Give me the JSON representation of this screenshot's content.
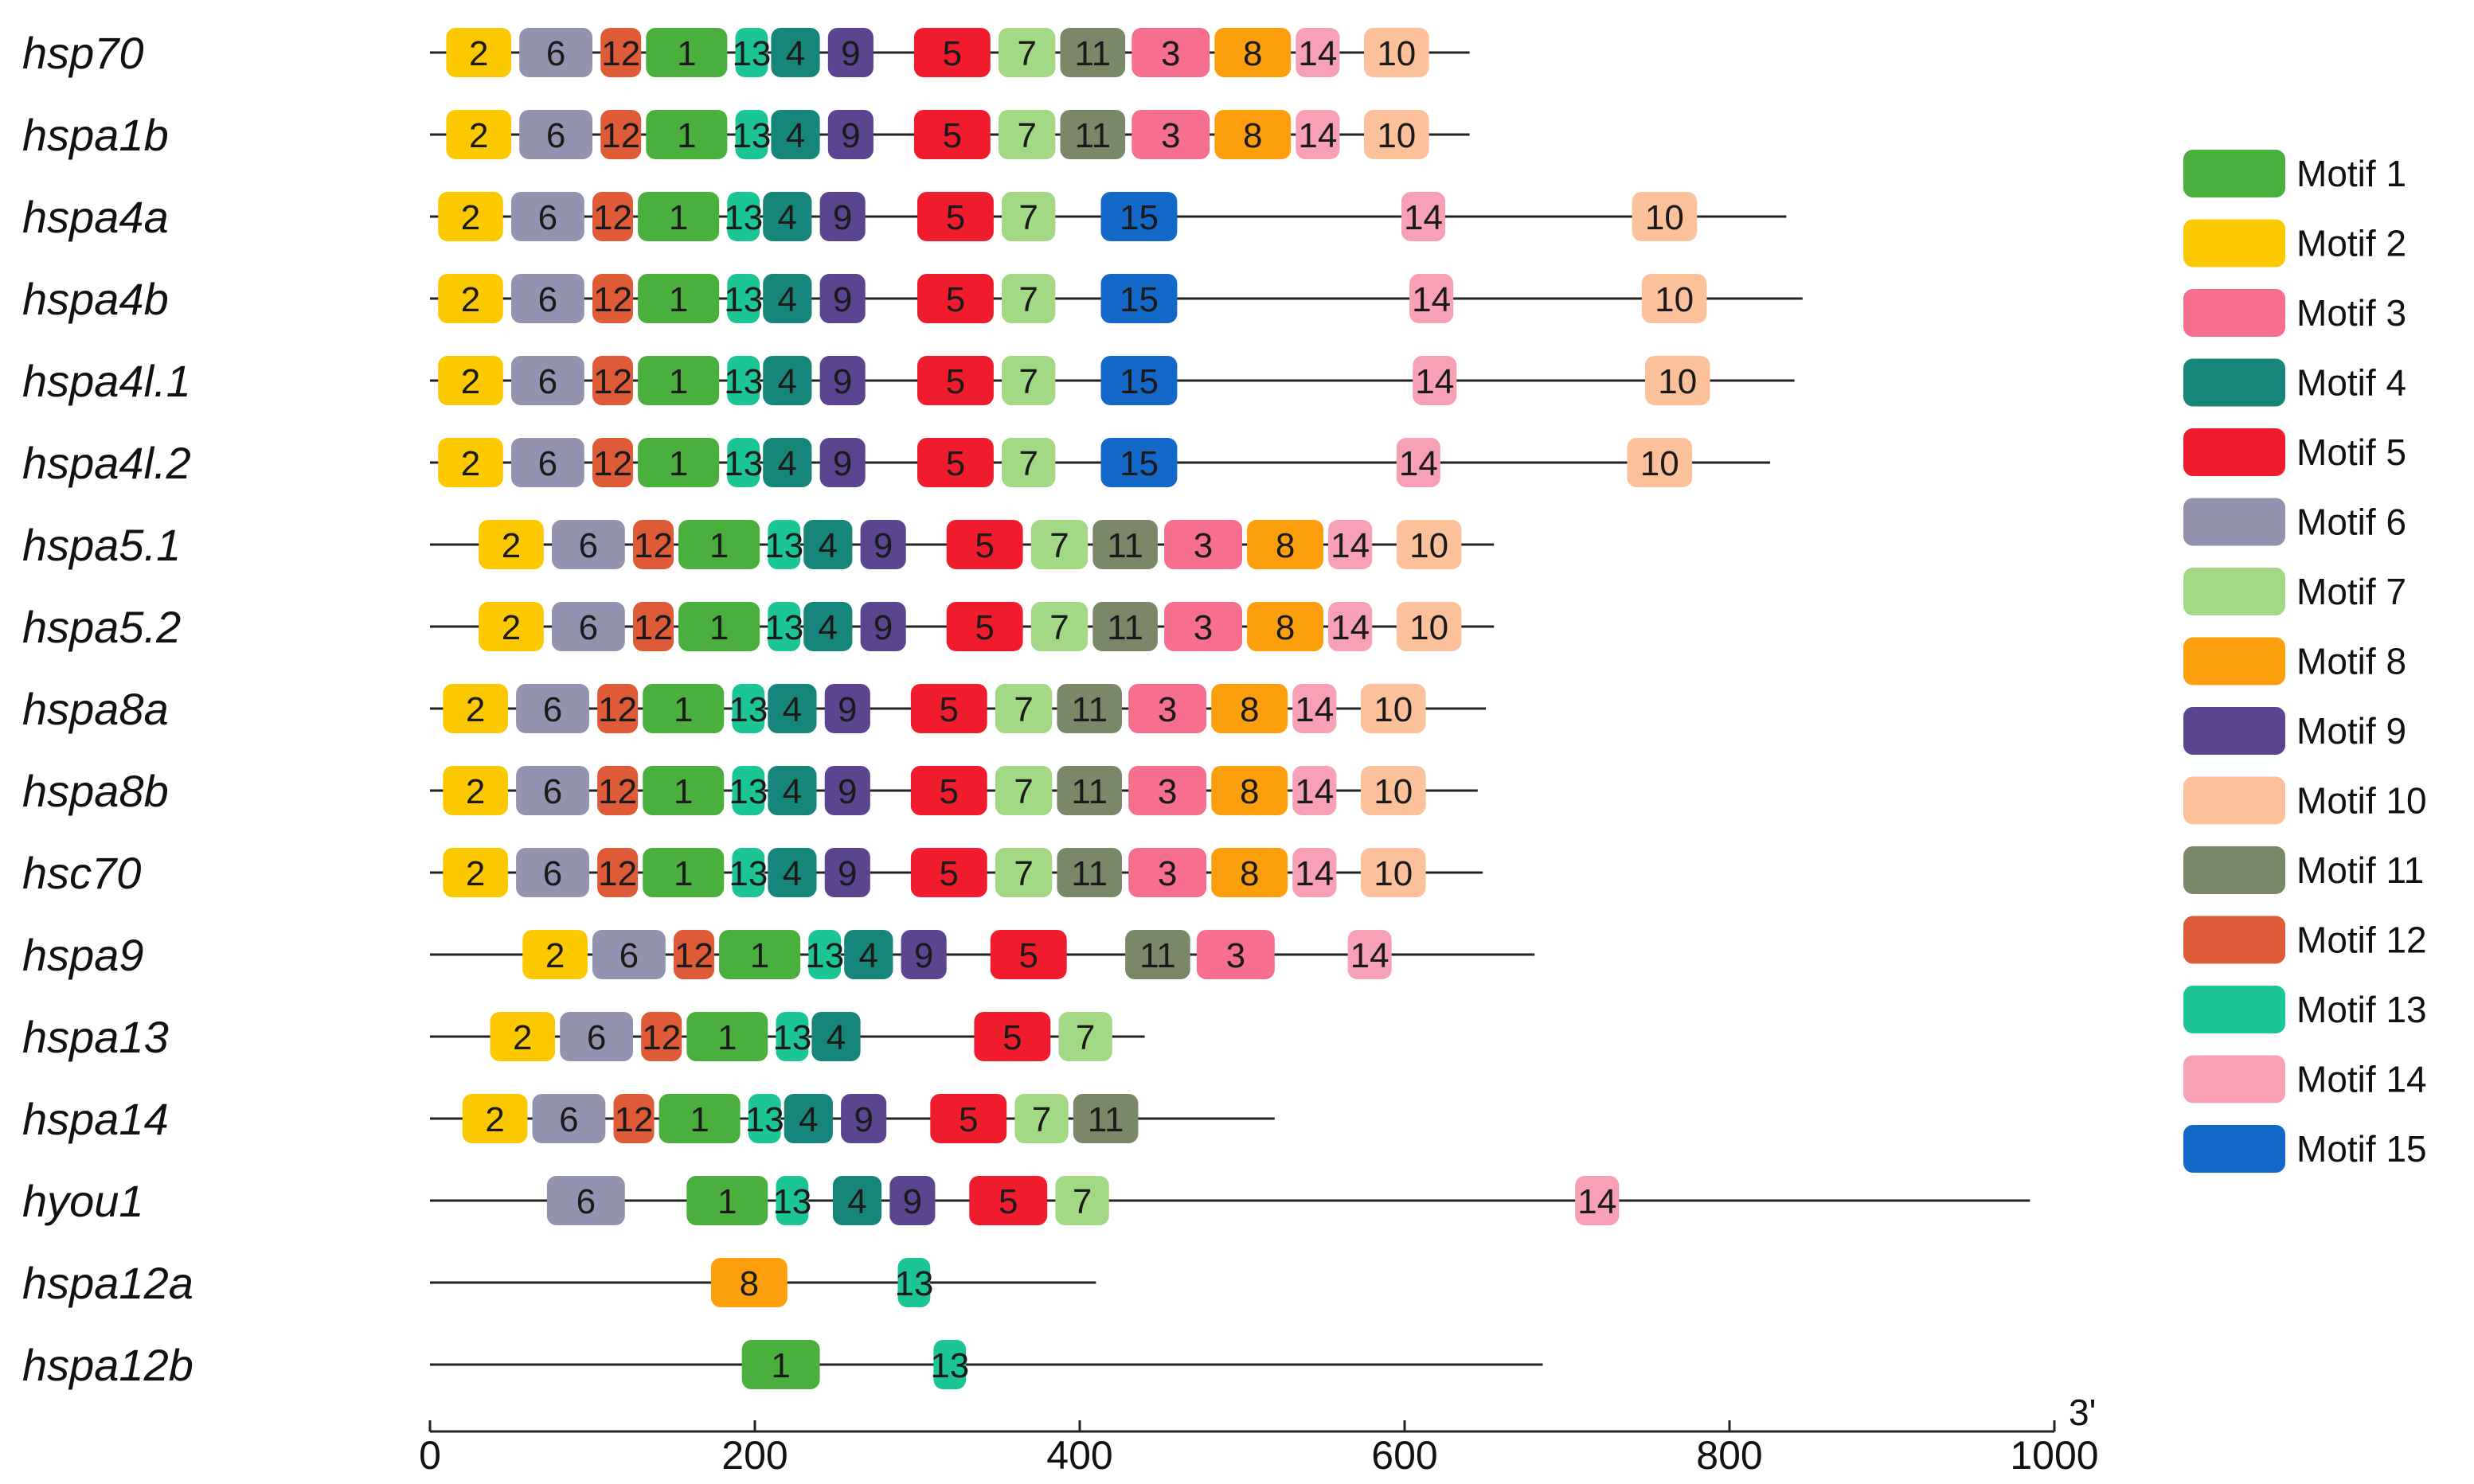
{
  "motif_colors": {
    "1": "#4aaf3c",
    "2": "#fcc800",
    "3": "#f76f8e",
    "4": "#16867a",
    "5": "#f01c2e",
    "6": "#9393b0",
    "7": "#a3d985",
    "8": "#fd9f0c",
    "9": "#5b4490",
    "10": "#fcc09a",
    "11": "#7a8868",
    "12": "#df5b38",
    "13": "#1cc596",
    "14": "#f8a0b6",
    "15": "#1368c8"
  },
  "legend": [
    {
      "motif": "1",
      "label": "Motif 1"
    },
    {
      "motif": "2",
      "label": "Motif 2"
    },
    {
      "motif": "3",
      "label": "Motif 3"
    },
    {
      "motif": "4",
      "label": "Motif 4"
    },
    {
      "motif": "5",
      "label": "Motif 5"
    },
    {
      "motif": "6",
      "label": "Motif 6"
    },
    {
      "motif": "7",
      "label": "Motif 7"
    },
    {
      "motif": "8",
      "label": "Motif 8"
    },
    {
      "motif": "9",
      "label": "Motif 9"
    },
    {
      "motif": "10",
      "label": "Motif 10"
    },
    {
      "motif": "11",
      "label": "Motif 11"
    },
    {
      "motif": "12",
      "label": "Motif 12"
    },
    {
      "motif": "13",
      "label": "Motif 13"
    },
    {
      "motif": "14",
      "label": "Motif 14"
    },
    {
      "motif": "15",
      "label": "Motif 15"
    }
  ],
  "axis": {
    "min": 0,
    "max": 1000,
    "ticks": [
      0,
      200,
      400,
      600,
      800,
      1000
    ],
    "tick_labels": [
      "0",
      "200",
      "400",
      "600",
      "800",
      "1000"
    ],
    "end_label": "3'"
  },
  "genes": [
    {
      "name": "hsp70",
      "length": 640,
      "motifs": [
        {
          "id": "2",
          "start": 10,
          "end": 50
        },
        {
          "id": "6",
          "start": 55,
          "end": 100
        },
        {
          "id": "12",
          "start": 105,
          "end": 130
        },
        {
          "id": "1",
          "start": 133,
          "end": 183
        },
        {
          "id": "13",
          "start": 188,
          "end": 208
        },
        {
          "id": "4",
          "start": 210,
          "end": 240
        },
        {
          "id": "9",
          "start": 245,
          "end": 273
        },
        {
          "id": "5",
          "start": 298,
          "end": 345
        },
        {
          "id": "7",
          "start": 350,
          "end": 385
        },
        {
          "id": "11",
          "start": 388,
          "end": 428
        },
        {
          "id": "3",
          "start": 432,
          "end": 480
        },
        {
          "id": "8",
          "start": 483,
          "end": 530
        },
        {
          "id": "14",
          "start": 533,
          "end": 560
        },
        {
          "id": "10",
          "start": 575,
          "end": 615
        }
      ]
    },
    {
      "name": "hspa1b",
      "length": 640,
      "motifs": [
        {
          "id": "2",
          "start": 10,
          "end": 50
        },
        {
          "id": "6",
          "start": 55,
          "end": 100
        },
        {
          "id": "12",
          "start": 105,
          "end": 130
        },
        {
          "id": "1",
          "start": 133,
          "end": 183
        },
        {
          "id": "13",
          "start": 188,
          "end": 208
        },
        {
          "id": "4",
          "start": 210,
          "end": 240
        },
        {
          "id": "9",
          "start": 245,
          "end": 273
        },
        {
          "id": "5",
          "start": 298,
          "end": 345
        },
        {
          "id": "7",
          "start": 350,
          "end": 385
        },
        {
          "id": "11",
          "start": 388,
          "end": 428
        },
        {
          "id": "3",
          "start": 432,
          "end": 480
        },
        {
          "id": "8",
          "start": 483,
          "end": 530
        },
        {
          "id": "14",
          "start": 533,
          "end": 560
        },
        {
          "id": "10",
          "start": 575,
          "end": 615
        }
      ]
    },
    {
      "name": "hspa4a",
      "length": 835,
      "motifs": [
        {
          "id": "2",
          "start": 5,
          "end": 45
        },
        {
          "id": "6",
          "start": 50,
          "end": 95
        },
        {
          "id": "12",
          "start": 100,
          "end": 125
        },
        {
          "id": "1",
          "start": 128,
          "end": 178
        },
        {
          "id": "13",
          "start": 183,
          "end": 203
        },
        {
          "id": "4",
          "start": 205,
          "end": 235
        },
        {
          "id": "9",
          "start": 240,
          "end": 268
        },
        {
          "id": "5",
          "start": 300,
          "end": 347
        },
        {
          "id": "7",
          "start": 352,
          "end": 385
        },
        {
          "id": "15",
          "start": 413,
          "end": 460
        },
        {
          "id": "14",
          "start": 598,
          "end": 625
        },
        {
          "id": "10",
          "start": 740,
          "end": 780
        }
      ]
    },
    {
      "name": "hspa4b",
      "length": 845,
      "motifs": [
        {
          "id": "2",
          "start": 5,
          "end": 45
        },
        {
          "id": "6",
          "start": 50,
          "end": 95
        },
        {
          "id": "12",
          "start": 100,
          "end": 125
        },
        {
          "id": "1",
          "start": 128,
          "end": 178
        },
        {
          "id": "13",
          "start": 183,
          "end": 203
        },
        {
          "id": "4",
          "start": 205,
          "end": 235
        },
        {
          "id": "9",
          "start": 240,
          "end": 268
        },
        {
          "id": "5",
          "start": 300,
          "end": 347
        },
        {
          "id": "7",
          "start": 352,
          "end": 385
        },
        {
          "id": "15",
          "start": 413,
          "end": 460
        },
        {
          "id": "14",
          "start": 603,
          "end": 630
        },
        {
          "id": "10",
          "start": 746,
          "end": 786
        }
      ]
    },
    {
      "name": "hspa4l.1",
      "length": 840,
      "motifs": [
        {
          "id": "2",
          "start": 5,
          "end": 45
        },
        {
          "id": "6",
          "start": 50,
          "end": 95
        },
        {
          "id": "12",
          "start": 100,
          "end": 125
        },
        {
          "id": "1",
          "start": 128,
          "end": 178
        },
        {
          "id": "13",
          "start": 183,
          "end": 203
        },
        {
          "id": "4",
          "start": 205,
          "end": 235
        },
        {
          "id": "9",
          "start": 240,
          "end": 268
        },
        {
          "id": "5",
          "start": 300,
          "end": 347
        },
        {
          "id": "7",
          "start": 352,
          "end": 385
        },
        {
          "id": "15",
          "start": 413,
          "end": 460
        },
        {
          "id": "14",
          "start": 605,
          "end": 632
        },
        {
          "id": "10",
          "start": 748,
          "end": 788
        }
      ]
    },
    {
      "name": "hspa4l.2",
      "length": 825,
      "motifs": [
        {
          "id": "2",
          "start": 5,
          "end": 45
        },
        {
          "id": "6",
          "start": 50,
          "end": 95
        },
        {
          "id": "12",
          "start": 100,
          "end": 125
        },
        {
          "id": "1",
          "start": 128,
          "end": 178
        },
        {
          "id": "13",
          "start": 183,
          "end": 203
        },
        {
          "id": "4",
          "start": 205,
          "end": 235
        },
        {
          "id": "9",
          "start": 240,
          "end": 268
        },
        {
          "id": "5",
          "start": 300,
          "end": 347
        },
        {
          "id": "7",
          "start": 352,
          "end": 385
        },
        {
          "id": "15",
          "start": 413,
          "end": 460
        },
        {
          "id": "14",
          "start": 595,
          "end": 622
        },
        {
          "id": "10",
          "start": 737,
          "end": 777
        }
      ]
    },
    {
      "name": "hspa5.1",
      "length": 655,
      "motifs": [
        {
          "id": "2",
          "start": 30,
          "end": 70
        },
        {
          "id": "6",
          "start": 75,
          "end": 120
        },
        {
          "id": "12",
          "start": 125,
          "end": 150
        },
        {
          "id": "1",
          "start": 153,
          "end": 203
        },
        {
          "id": "13",
          "start": 208,
          "end": 228
        },
        {
          "id": "4",
          "start": 230,
          "end": 260
        },
        {
          "id": "9",
          "start": 265,
          "end": 293
        },
        {
          "id": "5",
          "start": 318,
          "end": 365
        },
        {
          "id": "7",
          "start": 370,
          "end": 405
        },
        {
          "id": "11",
          "start": 408,
          "end": 448
        },
        {
          "id": "3",
          "start": 452,
          "end": 500
        },
        {
          "id": "8",
          "start": 503,
          "end": 550
        },
        {
          "id": "14",
          "start": 553,
          "end": 580
        },
        {
          "id": "10",
          "start": 595,
          "end": 635
        }
      ]
    },
    {
      "name": "hspa5.2",
      "length": 655,
      "motifs": [
        {
          "id": "2",
          "start": 30,
          "end": 70
        },
        {
          "id": "6",
          "start": 75,
          "end": 120
        },
        {
          "id": "12",
          "start": 125,
          "end": 150
        },
        {
          "id": "1",
          "start": 153,
          "end": 203
        },
        {
          "id": "13",
          "start": 208,
          "end": 228
        },
        {
          "id": "4",
          "start": 230,
          "end": 260
        },
        {
          "id": "9",
          "start": 265,
          "end": 293
        },
        {
          "id": "5",
          "start": 318,
          "end": 365
        },
        {
          "id": "7",
          "start": 370,
          "end": 405
        },
        {
          "id": "11",
          "start": 408,
          "end": 448
        },
        {
          "id": "3",
          "start": 452,
          "end": 500
        },
        {
          "id": "8",
          "start": 503,
          "end": 550
        },
        {
          "id": "14",
          "start": 553,
          "end": 580
        },
        {
          "id": "10",
          "start": 595,
          "end": 635
        }
      ]
    },
    {
      "name": "hspa8a",
      "length": 650,
      "motifs": [
        {
          "id": "2",
          "start": 8,
          "end": 48
        },
        {
          "id": "6",
          "start": 53,
          "end": 98
        },
        {
          "id": "12",
          "start": 103,
          "end": 128
        },
        {
          "id": "1",
          "start": 131,
          "end": 181
        },
        {
          "id": "13",
          "start": 186,
          "end": 206
        },
        {
          "id": "4",
          "start": 208,
          "end": 238
        },
        {
          "id": "9",
          "start": 243,
          "end": 271
        },
        {
          "id": "5",
          "start": 296,
          "end": 343
        },
        {
          "id": "7",
          "start": 348,
          "end": 383
        },
        {
          "id": "11",
          "start": 386,
          "end": 426
        },
        {
          "id": "3",
          "start": 430,
          "end": 478
        },
        {
          "id": "8",
          "start": 481,
          "end": 528
        },
        {
          "id": "14",
          "start": 531,
          "end": 558
        },
        {
          "id": "10",
          "start": 573,
          "end": 613
        }
      ]
    },
    {
      "name": "hspa8b",
      "length": 645,
      "motifs": [
        {
          "id": "2",
          "start": 8,
          "end": 48
        },
        {
          "id": "6",
          "start": 53,
          "end": 98
        },
        {
          "id": "12",
          "start": 103,
          "end": 128
        },
        {
          "id": "1",
          "start": 131,
          "end": 181
        },
        {
          "id": "13",
          "start": 186,
          "end": 206
        },
        {
          "id": "4",
          "start": 208,
          "end": 238
        },
        {
          "id": "9",
          "start": 243,
          "end": 271
        },
        {
          "id": "5",
          "start": 296,
          "end": 343
        },
        {
          "id": "7",
          "start": 348,
          "end": 383
        },
        {
          "id": "11",
          "start": 386,
          "end": 426
        },
        {
          "id": "3",
          "start": 430,
          "end": 478
        },
        {
          "id": "8",
          "start": 481,
          "end": 528
        },
        {
          "id": "14",
          "start": 531,
          "end": 558
        },
        {
          "id": "10",
          "start": 573,
          "end": 613
        }
      ]
    },
    {
      "name": "hsc70",
      "length": 648,
      "motifs": [
        {
          "id": "2",
          "start": 8,
          "end": 48
        },
        {
          "id": "6",
          "start": 53,
          "end": 98
        },
        {
          "id": "12",
          "start": 103,
          "end": 128
        },
        {
          "id": "1",
          "start": 131,
          "end": 181
        },
        {
          "id": "13",
          "start": 186,
          "end": 206
        },
        {
          "id": "4",
          "start": 208,
          "end": 238
        },
        {
          "id": "9",
          "start": 243,
          "end": 271
        },
        {
          "id": "5",
          "start": 296,
          "end": 343
        },
        {
          "id": "7",
          "start": 348,
          "end": 383
        },
        {
          "id": "11",
          "start": 386,
          "end": 426
        },
        {
          "id": "3",
          "start": 430,
          "end": 478
        },
        {
          "id": "8",
          "start": 481,
          "end": 528
        },
        {
          "id": "14",
          "start": 531,
          "end": 558
        },
        {
          "id": "10",
          "start": 573,
          "end": 613
        }
      ]
    },
    {
      "name": "hspa9",
      "length": 680,
      "motifs": [
        {
          "id": "2",
          "start": 57,
          "end": 97
        },
        {
          "id": "6",
          "start": 100,
          "end": 145
        },
        {
          "id": "12",
          "start": 150,
          "end": 175
        },
        {
          "id": "1",
          "start": 178,
          "end": 228
        },
        {
          "id": "13",
          "start": 233,
          "end": 253
        },
        {
          "id": "4",
          "start": 255,
          "end": 285
        },
        {
          "id": "9",
          "start": 290,
          "end": 318
        },
        {
          "id": "5",
          "start": 345,
          "end": 392
        },
        {
          "id": "11",
          "start": 428,
          "end": 468
        },
        {
          "id": "3",
          "start": 472,
          "end": 520
        },
        {
          "id": "14",
          "start": 565,
          "end": 592
        }
      ]
    },
    {
      "name": "hspa13",
      "length": 440,
      "motifs": [
        {
          "id": "2",
          "start": 37,
          "end": 77
        },
        {
          "id": "6",
          "start": 80,
          "end": 125
        },
        {
          "id": "12",
          "start": 130,
          "end": 155
        },
        {
          "id": "1",
          "start": 158,
          "end": 208
        },
        {
          "id": "13",
          "start": 213,
          "end": 233
        },
        {
          "id": "4",
          "start": 235,
          "end": 265
        },
        {
          "id": "5",
          "start": 335,
          "end": 382
        },
        {
          "id": "7",
          "start": 387,
          "end": 420
        }
      ]
    },
    {
      "name": "hspa14",
      "length": 520,
      "motifs": [
        {
          "id": "2",
          "start": 20,
          "end": 60
        },
        {
          "id": "6",
          "start": 63,
          "end": 108
        },
        {
          "id": "12",
          "start": 113,
          "end": 138
        },
        {
          "id": "1",
          "start": 141,
          "end": 191
        },
        {
          "id": "13",
          "start": 196,
          "end": 216
        },
        {
          "id": "4",
          "start": 218,
          "end": 248
        },
        {
          "id": "9",
          "start": 253,
          "end": 281
        },
        {
          "id": "5",
          "start": 308,
          "end": 355
        },
        {
          "id": "7",
          "start": 360,
          "end": 393
        },
        {
          "id": "11",
          "start": 396,
          "end": 436
        }
      ]
    },
    {
      "name": "hyou1",
      "length": 985,
      "motifs": [
        {
          "id": "6",
          "start": 72,
          "end": 120
        },
        {
          "id": "1",
          "start": 158,
          "end": 208
        },
        {
          "id": "13",
          "start": 213,
          "end": 233
        },
        {
          "id": "4",
          "start": 248,
          "end": 278
        },
        {
          "id": "9",
          "start": 283,
          "end": 311
        },
        {
          "id": "5",
          "start": 332,
          "end": 380
        },
        {
          "id": "7",
          "start": 385,
          "end": 418
        },
        {
          "id": "14",
          "start": 705,
          "end": 732
        }
      ]
    },
    {
      "name": "hspa12a",
      "length": 410,
      "motifs": [
        {
          "id": "8",
          "start": 173,
          "end": 220
        },
        {
          "id": "13",
          "start": 288,
          "end": 308
        }
      ]
    },
    {
      "name": "hspa12b",
      "length": 685,
      "motifs": [
        {
          "id": "1",
          "start": 192,
          "end": 240
        },
        {
          "id": "13",
          "start": 310,
          "end": 330
        }
      ]
    }
  ]
}
